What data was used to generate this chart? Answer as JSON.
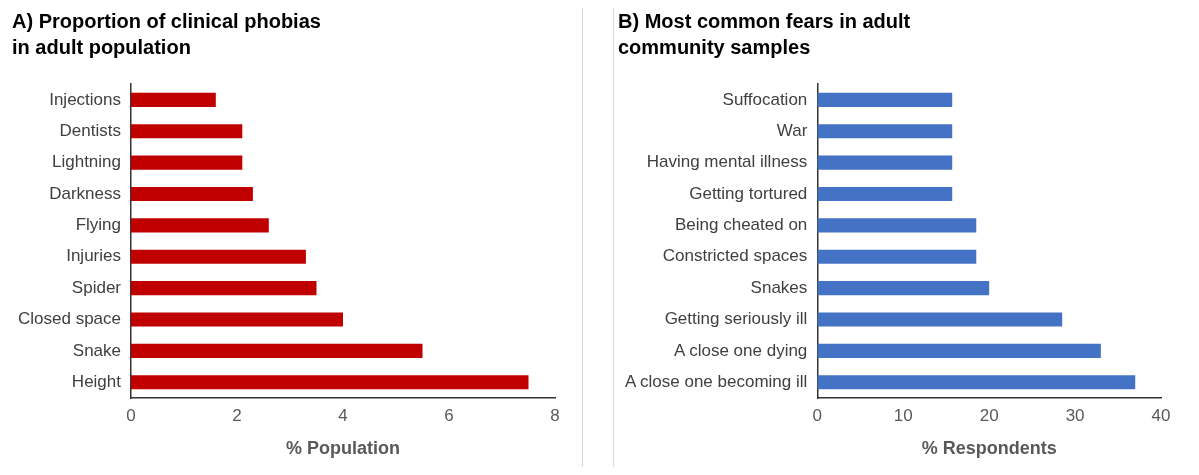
{
  "chart_data": [
    {
      "type": "bar",
      "orientation": "horizontal",
      "title": "A) Proportion of clinical phobias in adult population",
      "categories": [
        "Injections",
        "Dentists",
        "Lightning",
        "Darkness",
        "Flying",
        "Injuries",
        "Spider",
        "Closed space",
        "Snake",
        "Height"
      ],
      "values": [
        1.6,
        2.1,
        2.1,
        2.3,
        2.6,
        3.3,
        3.5,
        4.0,
        5.5,
        7.5
      ],
      "color": "#c00000",
      "xlim": [
        0,
        8
      ],
      "xticks": [
        0,
        2,
        4,
        6,
        8
      ],
      "xlabel": "% Population"
    },
    {
      "type": "bar",
      "orientation": "horizontal",
      "title": "B) Most common fears in adult community samples",
      "categories": [
        "Suffocation",
        "War",
        "Having mental illness",
        "Getting tortured",
        "Being cheated on",
        "Constricted spaces",
        "Snakes",
        "Getting seriously ill",
        "A close one dying",
        "A close one becoming ill"
      ],
      "values": [
        15.7,
        15.7,
        15.7,
        15.7,
        18.5,
        18.5,
        20,
        28.5,
        33,
        37
      ],
      "color": "#4472c4",
      "xlim": [
        0,
        40
      ],
      "xticks": [
        0,
        10,
        20,
        30,
        40
      ],
      "xlabel": "% Respondents"
    }
  ]
}
